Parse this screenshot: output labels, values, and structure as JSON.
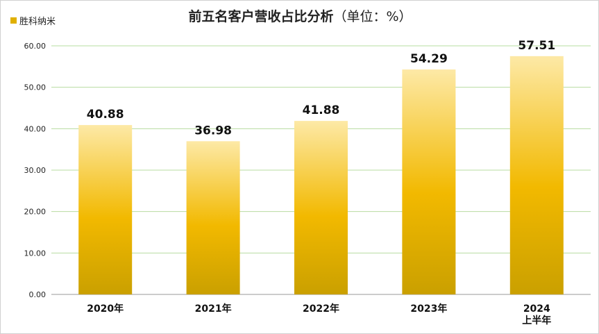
{
  "chart_data": {
    "type": "bar",
    "title": "前五名客户营收占比分析",
    "subtitle": "（单位：%）",
    "series": [
      {
        "name": "胜科纳米",
        "values": [
          40.88,
          36.98,
          41.88,
          54.29,
          57.51
        ]
      }
    ],
    "categories": [
      "2020年",
      "2021年",
      "2022年",
      "2023年",
      "2024上半年"
    ],
    "category_lines": [
      [
        "2020年"
      ],
      [
        "2021年"
      ],
      [
        "2022年"
      ],
      [
        "2023年"
      ],
      [
        "2024",
        "上半年"
      ]
    ],
    "data_labels": [
      "40.88",
      "36.98",
      "41.88",
      "54.29",
      "57.51"
    ],
    "yticks": [
      "0.00",
      "10.00",
      "20.00",
      "30.00",
      "40.00",
      "50.00",
      "60.00"
    ],
    "ylim": [
      0,
      60
    ],
    "xlabel": "",
    "ylabel": "",
    "grid": true,
    "legend_position": "top-left",
    "colors": {
      "bar_top": "#fde9a6",
      "bar_mid": "#f2b900",
      "bar_bottom": "#caa000",
      "grid": "#b7dca0",
      "axis": "#999999"
    }
  }
}
